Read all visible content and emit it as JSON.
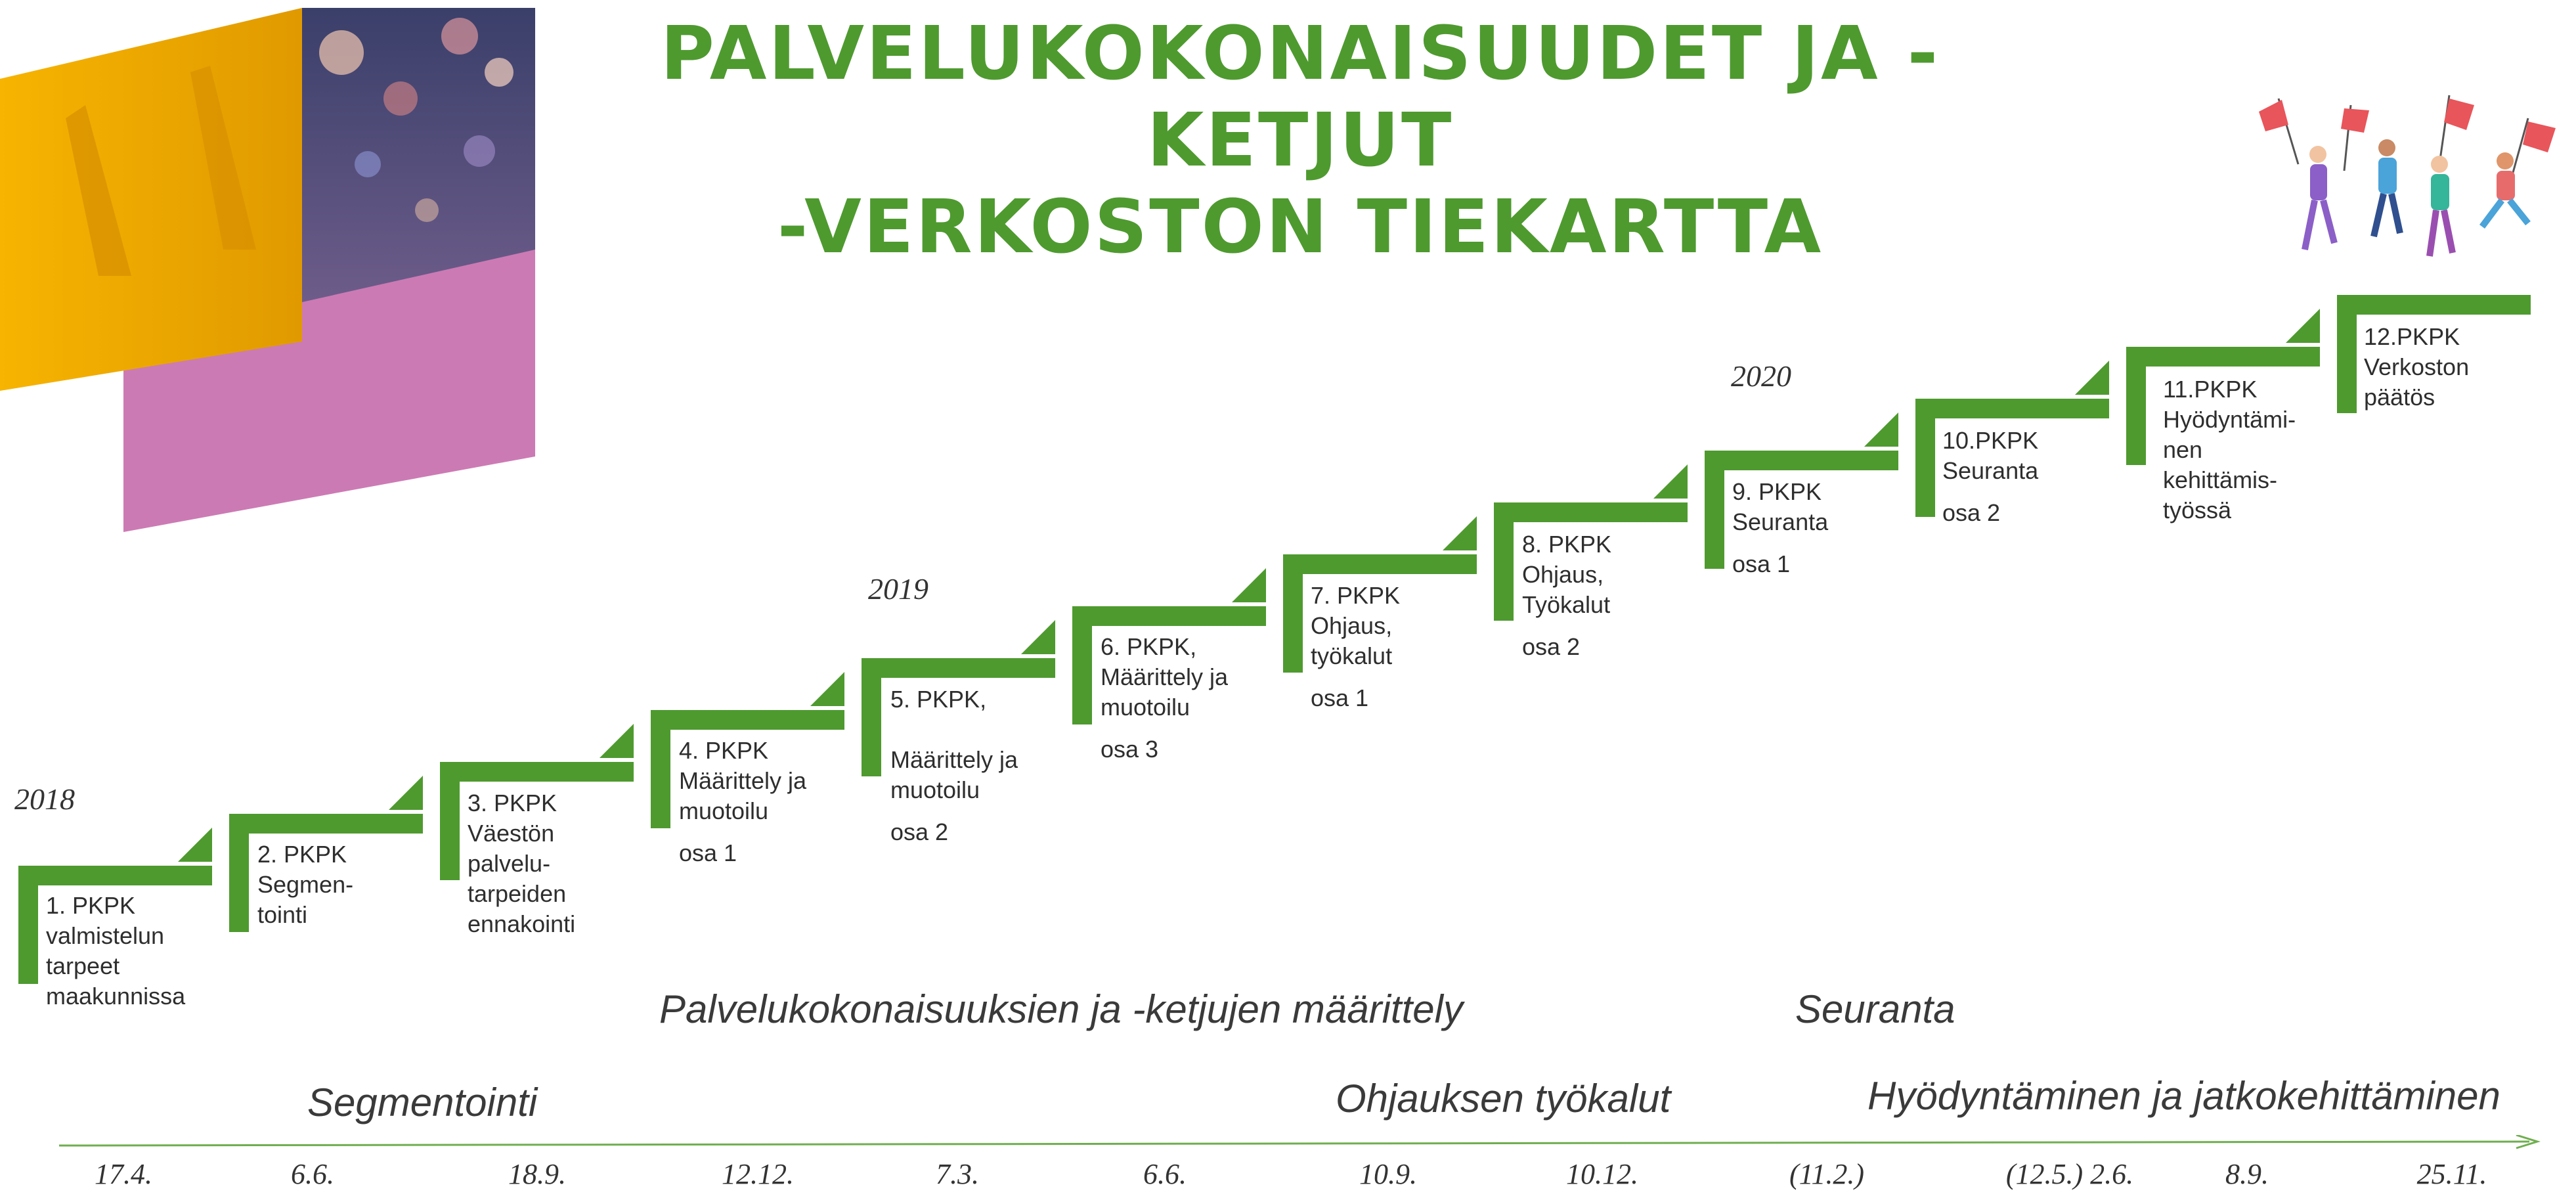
{
  "title": {
    "line1": "PALVELUKOKONAISUUDET JA -KETJUT",
    "line2": "-VERKOSTON TIEKARTTA"
  },
  "colors": {
    "accent_green": "#4e9a2f",
    "pink": "#cc7ab4",
    "yellow": "#f2a800"
  },
  "steps": [
    {
      "text": "1. PKPK\nvalmistelun\ntarpeet\nmaakunnissa",
      "osa": ""
    },
    {
      "text": "2. PKPK\nSegmen-\ntointi",
      "osa": ""
    },
    {
      "text": "3. PKPK\nVäestön\npalvelu-\ntarpeiden\nennakointi",
      "osa": ""
    },
    {
      "text": "4. PKPK\nMäärittely ja\nmuotoilu",
      "osa": "osa 1"
    },
    {
      "text": "5. PKPK,\n\nMäärittely ja\nmuotoilu",
      "osa": "osa 2"
    },
    {
      "text": "6. PKPK,\nMäärittely ja\nmuotoilu",
      "osa": "osa 3"
    },
    {
      "text": "7. PKPK\nOhjaus,\ntyökalut",
      "osa": "osa 1"
    },
    {
      "text": "8. PKPK\nOhjaus,\nTyökalut",
      "osa": "osa 2"
    },
    {
      "text": "9. PKPK\nSeuranta",
      "osa": "osa 1"
    },
    {
      "text": "10.PKPK\nSeuranta",
      "osa": "osa 2"
    },
    {
      "text": "11.PKPK\nHyödyntämi-\nnen\nkehittämis-\ntyössä",
      "osa": ""
    },
    {
      "text": "12.PKPK\nVerkoston\npäätös",
      "osa": ""
    }
  ],
  "years": [
    "2018",
    "2019",
    "2020"
  ],
  "phases": {
    "maarittely": "Palvelukokonaisuuksien ja -ketjujen määrittely",
    "seuranta": "Seuranta",
    "segmentointi": "Segmentointi",
    "ohjaus": "Ohjauksen työkalut",
    "hyodyntaminen": "Hyödyntäminen ja jatkokehittäminen"
  },
  "dates": [
    "17.4.",
    "6.6.",
    "18.9.",
    "12.12.",
    "7.3.",
    "6.6.",
    "10.9.",
    "10.12.",
    "(11.2.)",
    "(12.5.) 2.6.",
    "8.9.",
    "25.11."
  ]
}
